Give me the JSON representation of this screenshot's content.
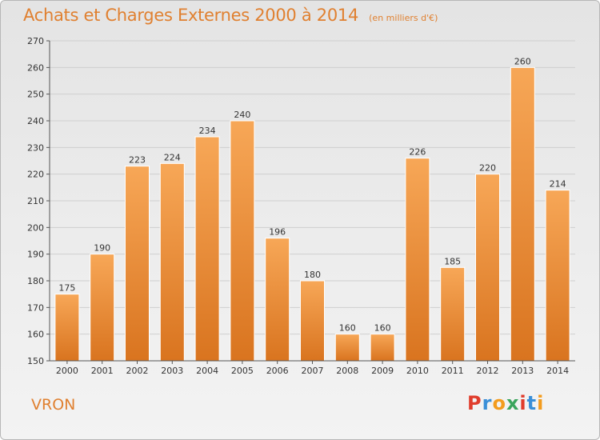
{
  "header": {
    "title": "Achats et Charges Externes 2000 à 2014",
    "subtitle": "(en milliers d'€)"
  },
  "footer": {
    "commune": "VRON",
    "brand": "Proxiti",
    "brand_colors": [
      "#e03c2c",
      "#3a8fd8",
      "#f39c1e",
      "#3aa55c",
      "#e03c2c",
      "#3a8fd8",
      "#f39c1e"
    ]
  },
  "chart_data": {
    "type": "bar",
    "title": "Achats et Charges Externes 2000 à 2014",
    "subtitle": "(en milliers d'€)",
    "xlabel": "",
    "ylabel": "",
    "categories": [
      "2000",
      "2001",
      "2002",
      "2003",
      "2004",
      "2005",
      "2006",
      "2007",
      "2008",
      "2009",
      "2010",
      "2011",
      "2012",
      "2013",
      "2014"
    ],
    "values": [
      175,
      190,
      223,
      224,
      234,
      240,
      196,
      180,
      160,
      160,
      226,
      185,
      220,
      260,
      214
    ],
    "ylim": [
      150,
      270
    ],
    "yticks": [
      150,
      160,
      170,
      180,
      190,
      200,
      210,
      220,
      230,
      240,
      250,
      260,
      270
    ],
    "grid": true,
    "bar_color_top": "#f7a757",
    "bar_color_bottom": "#d9741f",
    "data_labels": true
  }
}
